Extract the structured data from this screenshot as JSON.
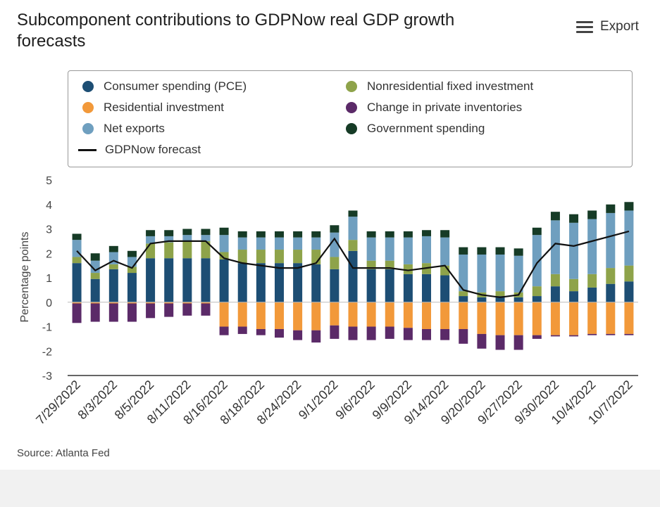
{
  "header": {
    "title": "Subcomponent contributions to GDPNow real GDP growth forecasts",
    "export_label": "Export",
    "export_icon": "hamburger-menu-icon"
  },
  "source": "Source: Atlanta Fed",
  "colors": {
    "pce": "#1d4e74",
    "residential": "#f2993a",
    "net_exports": "#6f9fbf",
    "nonres": "#8ea34a",
    "inventories": "#5b2a68",
    "government": "#163b26",
    "forecast": "#111111"
  },
  "legend": [
    {
      "label": "Consumer spending (PCE)",
      "color_key": "pce"
    },
    {
      "label": "Nonresidential fixed investment",
      "color_key": "nonres"
    },
    {
      "label": "Residential investment",
      "color_key": "residential"
    },
    {
      "label": "Change in private inventories",
      "color_key": "inventories"
    },
    {
      "label": "Net exports",
      "color_key": "net_exports"
    },
    {
      "label": "Government spending",
      "color_key": "government"
    },
    {
      "label": "GDPNow forecast",
      "color_key": "forecast",
      "line": true
    }
  ],
  "chart_data": {
    "type": "bar",
    "stacked": true,
    "ylabel": "Percentage points",
    "ylim": [
      -3,
      5
    ],
    "yticks": [
      5,
      4,
      3,
      2,
      1,
      0,
      -1,
      -2,
      -3
    ],
    "categories": [
      "7/29/2022",
      "8/1/2022",
      "8/3/2022",
      "8/4/2022",
      "8/5/2022",
      "8/10/2022",
      "8/11/2022",
      "8/12/2022",
      "8/16/2022",
      "8/17/2022",
      "8/18/2022",
      "8/19/2022",
      "8/24/2022",
      "8/25/2022",
      "9/1/2022",
      "9/2/2022",
      "9/6/2022",
      "9/8/2022",
      "9/9/2022",
      "9/13/2022",
      "9/14/2022",
      "9/19/2022",
      "9/20/2022",
      "9/26/2022",
      "9/27/2022",
      "9/28/2022",
      "9/30/2022",
      "10/3/2022",
      "10/4/2022",
      "10/5/2022",
      "10/7/2022"
    ],
    "xtick_labels": [
      "7/29/2022",
      "",
      "8/3/2022",
      "",
      "8/5/2022",
      "",
      "8/11/2022",
      "",
      "8/16/2022",
      "",
      "8/18/2022",
      "",
      "8/24/2022",
      "",
      "9/1/2022",
      "",
      "9/6/2022",
      "",
      "9/9/2022",
      "",
      "9/14/2022",
      "",
      "9/20/2022",
      "",
      "9/27/2022",
      "",
      "9/30/2022",
      "",
      "10/4/2022",
      "",
      "10/7/2022"
    ],
    "series": [
      {
        "name": "Consumer spending (PCE)",
        "color_key": "pce",
        "values": [
          1.6,
          0.95,
          1.35,
          1.2,
          1.8,
          1.8,
          1.8,
          1.8,
          1.75,
          1.6,
          1.6,
          1.6,
          1.6,
          1.55,
          1.35,
          2.1,
          1.35,
          1.35,
          1.15,
          1.15,
          1.1,
          0.25,
          0.2,
          0.25,
          0.2,
          0.25,
          0.65,
          0.45,
          0.6,
          0.75,
          0.85
        ]
      },
      {
        "name": "Nonresidential fixed investment",
        "color_key": "nonres",
        "values": [
          0.25,
          0.25,
          0.2,
          0.25,
          0.6,
          0.65,
          0.7,
          0.7,
          0.3,
          0.55,
          0.55,
          0.55,
          0.55,
          0.6,
          0.5,
          0.45,
          0.35,
          0.35,
          0.4,
          0.45,
          0.4,
          0.2,
          0.2,
          0.2,
          0.2,
          0.4,
          0.5,
          0.5,
          0.55,
          0.65,
          0.65
        ]
      },
      {
        "name": "Net exports",
        "color_key": "net_exports",
        "values": [
          0.7,
          0.5,
          0.5,
          0.4,
          0.3,
          0.25,
          0.25,
          0.25,
          0.7,
          0.5,
          0.5,
          0.5,
          0.5,
          0.5,
          1.0,
          0.95,
          0.95,
          0.95,
          1.1,
          1.1,
          1.15,
          1.5,
          1.55,
          1.5,
          1.5,
          2.1,
          2.2,
          2.3,
          2.25,
          2.25,
          2.25
        ]
      },
      {
        "name": "Government spending",
        "color_key": "government",
        "values": [
          0.25,
          0.3,
          0.25,
          0.25,
          0.25,
          0.25,
          0.25,
          0.25,
          0.3,
          0.25,
          0.25,
          0.25,
          0.25,
          0.25,
          0.3,
          0.25,
          0.25,
          0.25,
          0.25,
          0.25,
          0.3,
          0.3,
          0.3,
          0.3,
          0.3,
          0.3,
          0.35,
          0.35,
          0.35,
          0.35,
          0.35
        ]
      },
      {
        "name": "Residential investment",
        "color_key": "residential",
        "values": [
          -0.05,
          -0.05,
          -0.05,
          -0.05,
          -0.05,
          -0.05,
          -0.05,
          -0.05,
          -1.0,
          -1.0,
          -1.1,
          -1.1,
          -1.15,
          -1.15,
          -0.95,
          -1.0,
          -1.0,
          -1.0,
          -1.05,
          -1.1,
          -1.1,
          -1.1,
          -1.3,
          -1.35,
          -1.35,
          -1.35,
          -1.35,
          -1.35,
          -1.3,
          -1.3,
          -1.3
        ]
      },
      {
        "name": "Change in private inventories",
        "color_key": "inventories",
        "values": [
          -0.8,
          -0.75,
          -0.75,
          -0.75,
          -0.6,
          -0.55,
          -0.5,
          -0.5,
          -0.35,
          -0.3,
          -0.25,
          -0.35,
          -0.4,
          -0.5,
          -0.55,
          -0.55,
          -0.55,
          -0.5,
          -0.5,
          -0.45,
          -0.45,
          -0.6,
          -0.6,
          -0.6,
          -0.6,
          -0.15,
          -0.05,
          -0.05,
          -0.05,
          -0.05,
          -0.05
        ]
      }
    ],
    "forecast": {
      "name": "GDPNow forecast",
      "color_key": "forecast",
      "values": [
        2.1,
        1.3,
        1.7,
        1.4,
        2.4,
        2.5,
        2.5,
        2.5,
        1.8,
        1.6,
        1.5,
        1.4,
        1.4,
        1.6,
        2.6,
        1.4,
        1.4,
        1.4,
        1.3,
        1.4,
        1.5,
        0.5,
        0.3,
        0.2,
        0.3,
        1.6,
        2.4,
        2.3,
        2.5,
        2.7,
        2.9
      ]
    }
  }
}
